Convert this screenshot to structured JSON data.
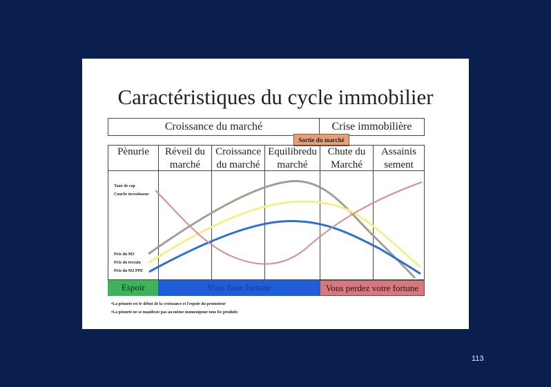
{
  "slide": {
    "title": "Caractéristiques du cycle immobilier",
    "page_number": "113"
  },
  "banners": {
    "growth": "Croissance du marché",
    "crisis": "Crise immobilière",
    "exit": "Sortie du marché"
  },
  "phases": [
    "Pènurie",
    "Réveil du marché",
    "Croissance du marché",
    "Equilibredu marché",
    "Chute du Marché",
    "Assainis sement"
  ],
  "curve_labels": {
    "cap_rate": "Taux de cap",
    "investor_curve": "Courbe investisseur",
    "price_m3": "Prix du M3",
    "land_price": "Prix du terrain",
    "price_m2_ppe": "Prix du M2 PPE"
  },
  "bottom_bar": {
    "hope": "Espoir",
    "fortune": "Vous faite fortune",
    "lose": "Vous perdez votre fortune"
  },
  "notes": [
    "•La pénurie est le début de la croissance et l'espoir du promoteur",
    "•La pénurie ne se manifeste pas au même momentpour tous les produits"
  ],
  "colors": {
    "slide_bg": "#0b1f4f",
    "grey_curve": "#a09d92",
    "yellow_curve": "#f5ef8a",
    "blue_curve": "#2a6fd6",
    "pink_curve": "#d98a8f",
    "hope": "#3fb35a",
    "fortune": "#1f5ed8",
    "lose": "#d9787c"
  }
}
